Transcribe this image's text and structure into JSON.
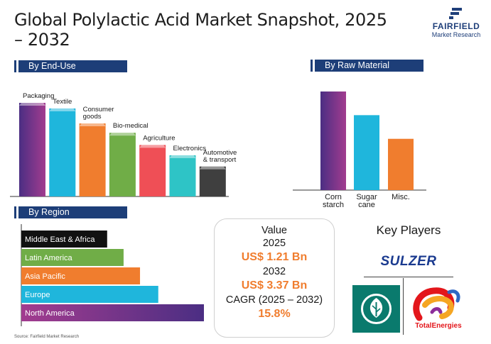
{
  "title": "Global Polylactic Acid Market Snapshot, 2025 – 2032",
  "logo": {
    "name": "FAIRFIELD",
    "sub": "Market Research"
  },
  "sections": {
    "end_use": "By End-Use",
    "raw_material": "By Raw Material",
    "region": "By Region"
  },
  "value_box": {
    "heading": "Value",
    "year1": "2025",
    "value1": "US$ 1.21 Bn",
    "year2": "2032",
    "value2": "US$ 3.37 Bn",
    "cagr_label": "CAGR (2025 – 2032)",
    "cagr_value": "15.8%"
  },
  "key_players": {
    "title": "Key Players",
    "companies": [
      "SULZER",
      "Neste",
      "TotalEnergies"
    ],
    "icons": [
      "sulzer-logo-icon",
      "neste-leaf-logo-icon",
      "totalenergies-logo-icon"
    ]
  },
  "source": "Source: Fairfield Market Research",
  "chart_data": [
    {
      "type": "bar",
      "section": "By End-Use",
      "categories": [
        "Packaging",
        "Textile",
        "Consumer goods",
        "Bio-medical",
        "Agriculture",
        "Electronics",
        "Automotive & transport"
      ],
      "values": [
        100,
        94,
        78,
        68,
        55,
        44,
        32
      ],
      "value_scale": "relative (no axis printed)",
      "colors": [
        "#4b2e83",
        "#1fb6dc",
        "#f07d2e",
        "#70ad47",
        "#ef4f56",
        "#2ec4c6",
        "#3f3f3f"
      ],
      "gradient_first": "#a23c8f"
    },
    {
      "type": "bar",
      "section": "By Raw Material",
      "categories": [
        "Corn starch",
        "Sugar cane",
        "Misc."
      ],
      "values": [
        100,
        76,
        52
      ],
      "value_scale": "relative (no axis printed)",
      "colors": [
        "#4b2e83",
        "#1fb6dc",
        "#f07d2e"
      ],
      "gradient_first": "#a23c8f"
    },
    {
      "type": "bar",
      "orientation": "horizontal",
      "section": "By Region",
      "categories": [
        "Middle East & Africa",
        "Latin America",
        "Asia Pacific",
        "Europe",
        "North America"
      ],
      "values": [
        47,
        56,
        65,
        75,
        100
      ],
      "value_scale": "relative (no axis printed)",
      "colors": [
        "#111111",
        "#70ad47",
        "#f07d2e",
        "#1fb6dc",
        "#4b2e83"
      ],
      "gradient_first": "#a23c8f"
    }
  ]
}
